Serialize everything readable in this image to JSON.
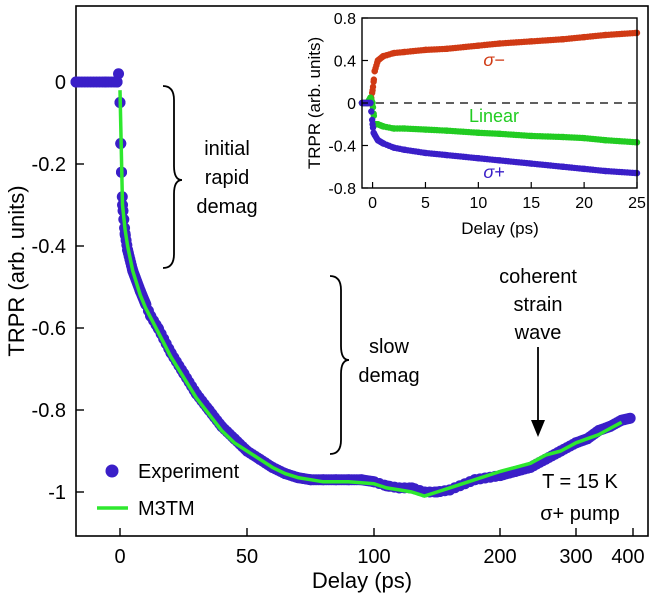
{
  "chart_data": [
    {
      "type": "scatter",
      "xlabel": "Delay (ps)",
      "ylabel": "TRPR (arb. units)",
      "x_tick_labels": [
        "0",
        "50",
        "100",
        "200",
        "300",
        "400"
      ],
      "y_tick_labels": [
        "0",
        "-0.2",
        "-0.4",
        "-0.6",
        "-0.8",
        "-1"
      ],
      "ylim": [
        -1.05,
        0.15
      ],
      "grid": false,
      "legend_position": "bottom-left",
      "series": [
        {
          "name": "Experiment",
          "style": "markers",
          "color": "#3a1fc8",
          "x": [
            -15,
            -5,
            -1,
            -0.5,
            0,
            0.3,
            0.6,
            1,
            2,
            3,
            5,
            8,
            10,
            12,
            15,
            20,
            25,
            30,
            35,
            40,
            45,
            50,
            55,
            60,
            65,
            70,
            75,
            80,
            85,
            90,
            95,
            100,
            110,
            120,
            130,
            140,
            150,
            160,
            180,
            200,
            220,
            240,
            260,
            280,
            300,
            320,
            340,
            360,
            380,
            395
          ],
          "y": [
            0.0,
            0.0,
            0.0,
            0.02,
            -0.05,
            -0.15,
            -0.22,
            -0.3,
            -0.37,
            -0.41,
            -0.46,
            -0.51,
            -0.54,
            -0.57,
            -0.6,
            -0.66,
            -0.71,
            -0.76,
            -0.8,
            -0.84,
            -0.87,
            -0.9,
            -0.92,
            -0.94,
            -0.955,
            -0.965,
            -0.97,
            -0.97,
            -0.97,
            -0.97,
            -0.97,
            -0.975,
            -0.985,
            -0.99,
            -0.99,
            -1.0,
            -1.0,
            -0.995,
            -0.97,
            -0.96,
            -0.95,
            -0.94,
            -0.92,
            -0.9,
            -0.88,
            -0.87,
            -0.85,
            -0.84,
            -0.825,
            -0.82
          ]
        },
        {
          "name": "M3TM",
          "style": "line",
          "color": "#2ee82e",
          "x": [
            0,
            1,
            2,
            3,
            5,
            8,
            10,
            15,
            20,
            25,
            30,
            35,
            40,
            45,
            50,
            55,
            60,
            65,
            70,
            75,
            80,
            90,
            100,
            110,
            120,
            130,
            140,
            150,
            160,
            180,
            200,
            220,
            240,
            260,
            280,
            300,
            320,
            340,
            360,
            380
          ],
          "y": [
            -0.02,
            -0.3,
            -0.36,
            -0.4,
            -0.46,
            -0.52,
            -0.55,
            -0.61,
            -0.67,
            -0.72,
            -0.77,
            -0.81,
            -0.85,
            -0.88,
            -0.9,
            -0.92,
            -0.94,
            -0.955,
            -0.965,
            -0.97,
            -0.975,
            -0.975,
            -0.98,
            -0.99,
            -0.995,
            -1.0,
            -1.01,
            -1.0,
            -0.99,
            -0.97,
            -0.95,
            -0.94,
            -0.93,
            -0.91,
            -0.9,
            -0.88,
            -0.87,
            -0.86,
            -0.845,
            -0.83
          ]
        }
      ],
      "annotations": [
        {
          "text_lines": [
            "initial",
            "rapid",
            "demag"
          ]
        },
        {
          "text_lines": [
            "slow",
            "demag"
          ]
        },
        {
          "text_lines": [
            "coherent",
            "strain",
            "wave"
          ]
        },
        {
          "text_lines": [
            "T = 15 K",
            "σ+ pump"
          ]
        }
      ]
    },
    {
      "type": "scatter",
      "xlabel": "Delay (ps)",
      "ylabel": "TRPR (arb. units)",
      "xlim": [
        -1,
        25
      ],
      "ylim": [
        -0.8,
        0.8
      ],
      "x_ticks": [
        0,
        5,
        10,
        15,
        20,
        25
      ],
      "y_ticks": [
        0.8,
        0.4,
        0,
        -0.4,
        -0.8
      ],
      "y_tick_labels": [
        "0.8",
        "0.4",
        "0",
        "-0.4",
        "-0.8"
      ],
      "legend_position": "none",
      "series": [
        {
          "name": "σ−",
          "color": "#d03a14",
          "x": [
            -1,
            -0.5,
            -0.2,
            0,
            0.1,
            0.2,
            0.5,
            1,
            2,
            3,
            5,
            7,
            10,
            12,
            15,
            18,
            20,
            22,
            25
          ],
          "y": [
            0.0,
            0.0,
            0.0,
            0.12,
            0.2,
            0.3,
            0.4,
            0.44,
            0.47,
            0.48,
            0.5,
            0.51,
            0.54,
            0.56,
            0.58,
            0.6,
            0.62,
            0.64,
            0.66
          ]
        },
        {
          "name": "Linear",
          "color": "#22cc22",
          "x": [
            -1,
            -0.5,
            -0.2,
            0,
            0.1,
            0.2,
            0.5,
            1,
            2,
            3,
            5,
            7,
            10,
            12,
            15,
            18,
            20,
            22,
            25
          ],
          "y": [
            0.0,
            0.0,
            0.05,
            0.0,
            -0.1,
            -0.2,
            -0.2,
            -0.22,
            -0.24,
            -0.24,
            -0.25,
            -0.26,
            -0.28,
            -0.29,
            -0.31,
            -0.32,
            -0.33,
            -0.35,
            -0.37
          ]
        },
        {
          "name": "σ+",
          "color": "#3a1fc8",
          "x": [
            -1,
            -0.5,
            -0.2,
            0,
            0.1,
            0.2,
            0.5,
            1,
            2,
            3,
            5,
            7,
            10,
            12,
            15,
            18,
            20,
            22,
            25
          ],
          "y": [
            0.0,
            0.0,
            0.0,
            -0.2,
            -0.28,
            -0.3,
            -0.35,
            -0.38,
            -0.42,
            -0.44,
            -0.47,
            -0.49,
            -0.52,
            -0.54,
            -0.57,
            -0.6,
            -0.62,
            -0.64,
            -0.66
          ]
        }
      ]
    }
  ]
}
